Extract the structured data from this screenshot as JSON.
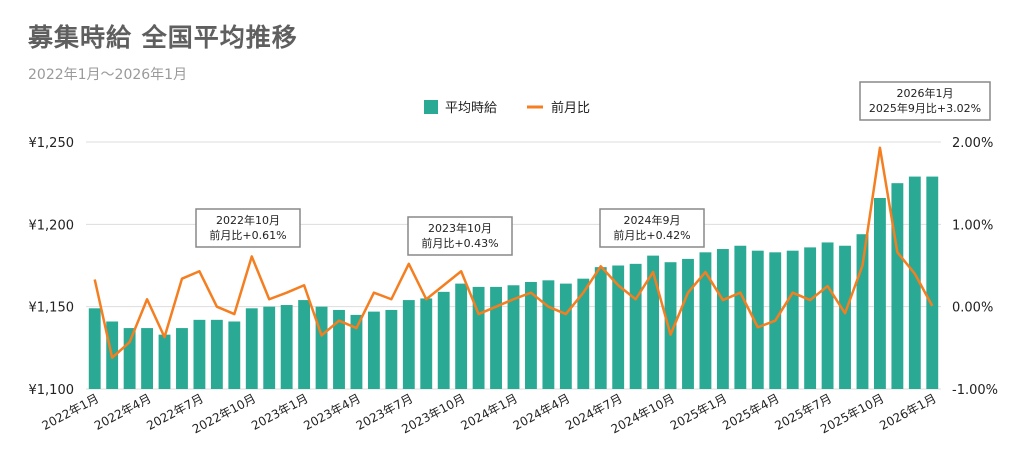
{
  "header": {
    "title": "募集時給 全国平均推移",
    "subtitle": "2022年1月～2026年1月"
  },
  "colors": {
    "bar": "#2aaa94",
    "line": "#f47e20",
    "grid": "#dddddd"
  },
  "chart_data": {
    "type": "bar",
    "categories": [
      "2022年1月",
      "2022年2月",
      "2022年3月",
      "2022年4月",
      "2022年5月",
      "2022年6月",
      "2022年7月",
      "2022年8月",
      "2022年9月",
      "2022年10月",
      "2022年11月",
      "2022年12月",
      "2023年1月",
      "2023年2月",
      "2023年3月",
      "2023年4月",
      "2023年5月",
      "2023年6月",
      "2023年7月",
      "2023年8月",
      "2023年9月",
      "2023年10月",
      "2023年11月",
      "2023年12月",
      "2024年1月",
      "2024年2月",
      "2024年3月",
      "2024年4月",
      "2024年5月",
      "2024年6月",
      "2024年7月",
      "2024年8月",
      "2024年9月",
      "2024年10月",
      "2024年11月",
      "2024年12月",
      "2025年1月",
      "2025年2月",
      "2025年3月",
      "2025年4月",
      "2025年5月",
      "2025年6月",
      "2025年7月",
      "2025年8月",
      "2025年9月",
      "2025年10月",
      "2025年11月",
      "2025年12月",
      "2026年1月"
    ],
    "x_tick_labels": [
      "2022年1月",
      "2022年4月",
      "2022年7月",
      "2022年10月",
      "2023年1月",
      "2023年4月",
      "2023年7月",
      "2023年10月",
      "2024年1月",
      "2024年4月",
      "2024年7月",
      "2024年10月",
      "2025年1月",
      "2025年4月",
      "2025年7月",
      "2025年10月",
      "2026年1月"
    ],
    "series": [
      {
        "name": "平均時給",
        "type": "bar",
        "axis": "left",
        "values": [
          1149,
          1141,
          1137,
          1137,
          1133,
          1137,
          1142,
          1142,
          1141,
          1149,
          1150,
          1151,
          1154,
          1150,
          1148,
          1145,
          1147,
          1148,
          1154,
          1155,
          1159,
          1164,
          1162,
          1162,
          1163,
          1165,
          1166,
          1164,
          1167,
          1174,
          1175,
          1176,
          1181,
          1177,
          1179,
          1183,
          1185,
          1187,
          1184,
          1183,
          1184,
          1186,
          1189,
          1187,
          1194,
          1216,
          1225,
          1229,
          1229
        ]
      },
      {
        "name": "前月比",
        "type": "line",
        "axis": "right",
        "values": [
          0.33,
          -0.62,
          -0.43,
          0.09,
          -0.37,
          0.34,
          0.43,
          0.0,
          -0.09,
          0.61,
          0.09,
          0.17,
          0.26,
          -0.35,
          -0.17,
          -0.26,
          0.17,
          0.09,
          0.52,
          0.09,
          0.26,
          0.43,
          -0.09,
          0.0,
          0.09,
          0.17,
          0.0,
          -0.09,
          0.17,
          0.49,
          0.26,
          0.09,
          0.42,
          -0.34,
          0.17,
          0.42,
          0.08,
          0.17,
          -0.25,
          -0.17,
          0.17,
          0.08,
          0.25,
          -0.08,
          0.5,
          1.93,
          0.66,
          0.4,
          0.01
        ]
      }
    ],
    "y_left": {
      "range": [
        1100,
        1250
      ],
      "ticks": [
        "¥1,100",
        "¥1,150",
        "¥1,200",
        "¥1,250"
      ],
      "tick_values": [
        1100,
        1150,
        1200,
        1250
      ]
    },
    "y_right": {
      "range": [
        -1.0,
        2.0
      ],
      "ticks": [
        "-1.00%",
        "0.00%",
        "1.00%",
        "2.00%"
      ],
      "tick_values": [
        -1,
        0,
        1,
        2
      ]
    },
    "legend": {
      "placement": "top-center",
      "items": [
        "平均時給",
        "前月比"
      ]
    },
    "grid": true,
    "annotations": [
      {
        "lines": [
          "2022年10月",
          "前月比+0.61%"
        ],
        "index": 9
      },
      {
        "lines": [
          "2023年10月",
          "前月比+0.43%"
        ],
        "index": 21
      },
      {
        "lines": [
          "2024年9月",
          "前月比+0.42%"
        ],
        "index": 32
      },
      {
        "lines": [
          "2026年1月",
          "2025年9月比+3.02%"
        ],
        "index": 48
      }
    ]
  }
}
